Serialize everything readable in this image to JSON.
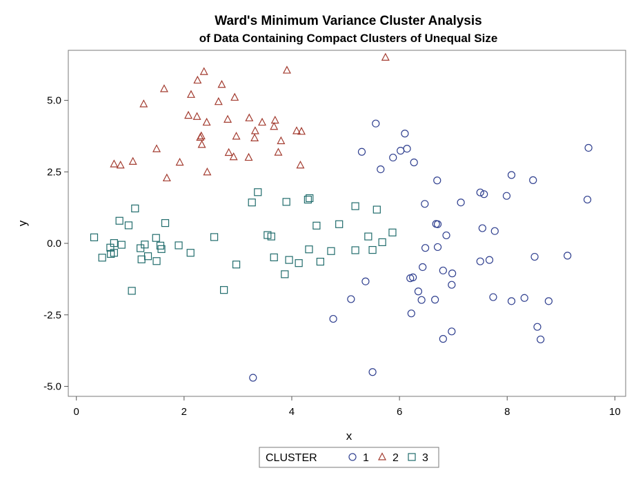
{
  "chart_data": {
    "type": "scatter",
    "title": "Ward's Minimum Variance Cluster Analysis",
    "subtitle": "of Data Containing Compact Clusters of Unequal Size",
    "xlabel": "x",
    "ylabel": "y",
    "xlim": [
      -0.15,
      10.2
    ],
    "ylim": [
      -5.35,
      6.75
    ],
    "xticks": [
      0,
      2,
      4,
      6,
      8,
      10
    ],
    "xtick_labels": [
      "0",
      "2",
      "4",
      "6",
      "8",
      "10"
    ],
    "yticks": [
      -5,
      -2.5,
      0,
      2.5,
      5
    ],
    "ytick_labels": [
      "-5.0",
      "-2.5",
      "0.0",
      "2.5",
      "5.0"
    ],
    "grid": false,
    "legend": {
      "title": "CLUSTER",
      "position": "bottom-center"
    },
    "series": [
      {
        "name": "1",
        "marker": "circle",
        "color": "#2f3f8f",
        "points": [
          [
            5.56,
            4.19
          ],
          [
            6.1,
            3.84
          ],
          [
            6.14,
            3.31
          ],
          [
            6.02,
            3.24
          ],
          [
            5.3,
            3.2
          ],
          [
            5.88,
            3.0
          ],
          [
            6.27,
            2.83
          ],
          [
            5.65,
            2.59
          ],
          [
            6.7,
            2.2
          ],
          [
            8.08,
            2.39
          ],
          [
            8.48,
            2.21
          ],
          [
            9.51,
            3.34
          ],
          [
            7.5,
            1.78
          ],
          [
            7.57,
            1.72
          ],
          [
            7.99,
            1.66
          ],
          [
            7.14,
            1.43
          ],
          [
            6.47,
            1.38
          ],
          [
            9.49,
            1.53
          ],
          [
            6.68,
            0.68
          ],
          [
            6.71,
            0.67
          ],
          [
            7.54,
            0.53
          ],
          [
            7.77,
            0.43
          ],
          [
            6.87,
            0.28
          ],
          [
            6.48,
            -0.16
          ],
          [
            6.71,
            -0.13
          ],
          [
            7.5,
            -0.63
          ],
          [
            7.67,
            -0.58
          ],
          [
            8.51,
            -0.47
          ],
          [
            9.12,
            -0.43
          ],
          [
            6.43,
            -0.83
          ],
          [
            6.81,
            -0.95
          ],
          [
            6.98,
            -1.05
          ],
          [
            6.2,
            -1.22
          ],
          [
            6.25,
            -1.19
          ],
          [
            5.37,
            -1.33
          ],
          [
            6.97,
            -1.45
          ],
          [
            6.35,
            -1.68
          ],
          [
            5.1,
            -1.95
          ],
          [
            6.41,
            -1.98
          ],
          [
            6.66,
            -1.97
          ],
          [
            7.74,
            -1.88
          ],
          [
            8.08,
            -2.02
          ],
          [
            8.32,
            -1.91
          ],
          [
            8.77,
            -2.02
          ],
          [
            6.22,
            -2.45
          ],
          [
            4.77,
            -2.64
          ],
          [
            8.56,
            -2.92
          ],
          [
            6.97,
            -3.08
          ],
          [
            6.81,
            -3.34
          ],
          [
            8.62,
            -3.36
          ],
          [
            5.5,
            -4.5
          ],
          [
            3.28,
            -4.7
          ]
        ]
      },
      {
        "name": "2",
        "marker": "triangle",
        "color": "#a23a2e",
        "points": [
          [
            5.74,
            6.5
          ],
          [
            2.37,
            6.0
          ],
          [
            3.91,
            6.05
          ],
          [
            2.25,
            5.7
          ],
          [
            2.7,
            5.55
          ],
          [
            1.63,
            5.4
          ],
          [
            2.13,
            5.2
          ],
          [
            2.94,
            5.1
          ],
          [
            1.25,
            4.87
          ],
          [
            2.64,
            4.95
          ],
          [
            2.08,
            4.47
          ],
          [
            2.24,
            4.43
          ],
          [
            2.81,
            4.33
          ],
          [
            3.21,
            4.38
          ],
          [
            3.45,
            4.23
          ],
          [
            3.69,
            4.3
          ],
          [
            2.42,
            4.23
          ],
          [
            3.67,
            4.08
          ],
          [
            3.32,
            3.93
          ],
          [
            4.09,
            3.93
          ],
          [
            4.18,
            3.91
          ],
          [
            2.32,
            3.75
          ],
          [
            2.3,
            3.7
          ],
          [
            2.97,
            3.74
          ],
          [
            3.31,
            3.68
          ],
          [
            3.8,
            3.58
          ],
          [
            2.33,
            3.45
          ],
          [
            1.49,
            3.3
          ],
          [
            2.83,
            3.17
          ],
          [
            3.75,
            3.18
          ],
          [
            2.92,
            3.02
          ],
          [
            3.2,
            3.0
          ],
          [
            1.05,
            2.86
          ],
          [
            1.92,
            2.83
          ],
          [
            0.7,
            2.77
          ],
          [
            0.82,
            2.73
          ],
          [
            4.16,
            2.73
          ],
          [
            2.43,
            2.49
          ],
          [
            1.68,
            2.28
          ]
        ]
      },
      {
        "name": "3",
        "marker": "square",
        "color": "#1f6b6b",
        "points": [
          [
            3.37,
            1.79
          ],
          [
            4.33,
            1.58
          ],
          [
            4.3,
            1.53
          ],
          [
            3.26,
            1.43
          ],
          [
            3.9,
            1.45
          ],
          [
            5.18,
            1.3
          ],
          [
            5.58,
            1.18
          ],
          [
            1.09,
            1.22
          ],
          [
            0.8,
            0.79
          ],
          [
            1.65,
            0.71
          ],
          [
            0.97,
            0.63
          ],
          [
            4.88,
            0.67
          ],
          [
            4.46,
            0.62
          ],
          [
            5.87,
            0.38
          ],
          [
            3.55,
            0.29
          ],
          [
            3.62,
            0.24
          ],
          [
            5.42,
            0.24
          ],
          [
            0.33,
            0.21
          ],
          [
            1.48,
            0.19
          ],
          [
            2.56,
            0.22
          ],
          [
            5.68,
            0.04
          ],
          [
            0.7,
            0.01
          ],
          [
            0.84,
            -0.05
          ],
          [
            1.27,
            -0.04
          ],
          [
            1.56,
            -0.08
          ],
          [
            1.9,
            -0.07
          ],
          [
            0.63,
            -0.15
          ],
          [
            1.19,
            -0.17
          ],
          [
            1.58,
            -0.2
          ],
          [
            4.32,
            -0.21
          ],
          [
            4.73,
            -0.27
          ],
          [
            5.18,
            -0.24
          ],
          [
            5.5,
            -0.23
          ],
          [
            0.64,
            -0.37
          ],
          [
            0.7,
            -0.33
          ],
          [
            2.12,
            -0.33
          ],
          [
            1.33,
            -0.45
          ],
          [
            0.48,
            -0.5
          ],
          [
            1.21,
            -0.56
          ],
          [
            1.49,
            -0.62
          ],
          [
            3.67,
            -0.49
          ],
          [
            3.95,
            -0.58
          ],
          [
            4.13,
            -0.69
          ],
          [
            4.53,
            -0.64
          ],
          [
            2.97,
            -0.74
          ],
          [
            3.87,
            -1.08
          ],
          [
            1.03,
            -1.66
          ],
          [
            2.74,
            -1.63
          ]
        ]
      }
    ]
  }
}
